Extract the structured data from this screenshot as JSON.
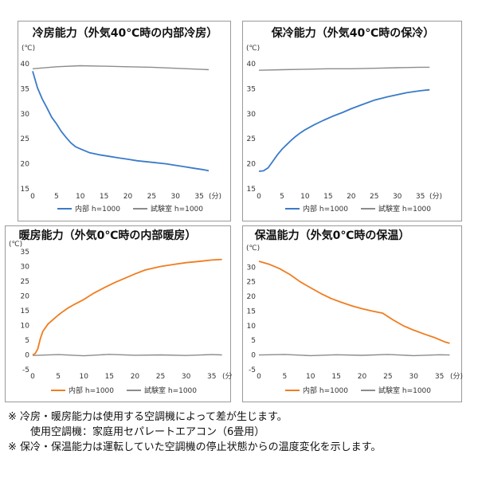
{
  "unit_label": "(℃)",
  "minute_label": "(分)",
  "colors": {
    "blue": "#3a7bc8",
    "orange": "#f07c1e",
    "gray": "#8c8c8c"
  },
  "chart_data": [
    {
      "type": "line",
      "title": "冷房能力（外気40℃時の内部冷房）",
      "x_ticks": [
        0,
        5,
        10,
        15,
        20,
        25,
        30,
        35
      ],
      "y_ticks": [
        40,
        35,
        30,
        25,
        20,
        15
      ],
      "xlim": [
        0,
        38
      ],
      "ylim": [
        15,
        40
      ],
      "series": [
        {
          "name": "内部 h=1000",
          "color": "#3a7bc8",
          "x": [
            0,
            1,
            2,
            3,
            4,
            5,
            6,
            7,
            8,
            9,
            10,
            12,
            14,
            16,
            18,
            20,
            22,
            25,
            28,
            30,
            32,
            34,
            36,
            37
          ],
          "y": [
            38.5,
            35.2,
            33.0,
            31.2,
            29.3,
            28.0,
            26.5,
            25.3,
            24.2,
            23.4,
            23.0,
            22.2,
            21.8,
            21.5,
            21.2,
            20.9,
            20.6,
            20.3,
            20.0,
            19.7,
            19.4,
            19.1,
            18.8,
            18.6
          ]
        },
        {
          "name": "試験室 h=1000",
          "color": "#8c8c8c",
          "x": [
            0,
            5,
            10,
            15,
            20,
            25,
            30,
            35,
            37
          ],
          "y": [
            39.0,
            39.4,
            39.6,
            39.5,
            39.4,
            39.3,
            39.1,
            38.9,
            38.8
          ]
        }
      ]
    },
    {
      "type": "line",
      "title": "保冷能力（外気40℃時の保冷）",
      "x_ticks": [
        0,
        5,
        10,
        15,
        20,
        25,
        30,
        35
      ],
      "y_ticks": [
        40,
        35,
        30,
        25,
        20,
        15
      ],
      "xlim": [
        0,
        38
      ],
      "ylim": [
        15,
        40
      ],
      "series": [
        {
          "name": "内部 h=1000",
          "color": "#3a7bc8",
          "x": [
            0,
            1,
            2,
            3,
            4,
            5,
            6,
            7,
            8,
            9,
            10,
            12,
            14,
            16,
            18,
            20,
            22,
            25,
            28,
            30,
            32,
            35,
            37
          ],
          "y": [
            18.5,
            18.6,
            19.2,
            20.5,
            21.8,
            22.9,
            23.8,
            24.7,
            25.5,
            26.2,
            26.8,
            27.8,
            28.7,
            29.5,
            30.2,
            31.0,
            31.7,
            32.7,
            33.4,
            33.8,
            34.2,
            34.6,
            34.8
          ]
        },
        {
          "name": "試験室 h=1000",
          "color": "#8c8c8c",
          "x": [
            0,
            5,
            10,
            15,
            20,
            25,
            30,
            35,
            37
          ],
          "y": [
            38.7,
            38.8,
            38.9,
            39.0,
            39.0,
            39.1,
            39.2,
            39.3,
            39.3
          ]
        }
      ]
    },
    {
      "type": "line",
      "title": "暖房能力（外気0℃時の内部暖房）",
      "x_ticks": [
        0,
        5,
        10,
        15,
        20,
        25,
        30,
        35
      ],
      "y_ticks": [
        35,
        30,
        25,
        20,
        15,
        10,
        5,
        0,
        -5
      ],
      "xlim": [
        0,
        38
      ],
      "ylim": [
        -5,
        35
      ],
      "series": [
        {
          "name": "内部 h=1000",
          "color": "#f07c1e",
          "x": [
            0,
            0.5,
            1,
            1.5,
            2,
            3,
            4,
            5,
            6,
            7,
            8,
            9,
            10,
            12,
            14,
            16,
            18,
            20,
            22,
            25,
            28,
            30,
            33,
            35,
            37
          ],
          "y": [
            0,
            0.5,
            2.0,
            5.5,
            8.0,
            10.5,
            12.0,
            13.5,
            14.8,
            16.0,
            17.0,
            17.9,
            18.8,
            21.0,
            22.8,
            24.5,
            26.0,
            27.5,
            28.8,
            30.0,
            30.8,
            31.3,
            31.8,
            32.2,
            32.4
          ]
        },
        {
          "name": "試験室 h=1000",
          "color": "#8c8c8c",
          "x": [
            0,
            5,
            10,
            15,
            20,
            25,
            30,
            35,
            37
          ],
          "y": [
            -0.2,
            0.1,
            -0.3,
            0.2,
            -0.1,
            0.0,
            -0.2,
            0.1,
            0.0
          ]
        }
      ]
    },
    {
      "type": "line",
      "title": "保温能力（外気0℃時の保温）",
      "x_ticks": [
        0,
        5,
        10,
        15,
        20,
        25,
        30,
        35
      ],
      "y_ticks": [
        30,
        25,
        20,
        15,
        10,
        5,
        0,
        -5
      ],
      "xlim": [
        0,
        38
      ],
      "ylim": [
        -5,
        32
      ],
      "series": [
        {
          "name": "内部 h=1000",
          "color": "#f07c1e",
          "x": [
            0,
            2,
            4,
            6,
            8,
            10,
            12,
            14,
            16,
            18,
            20,
            22,
            24,
            26,
            28,
            30,
            32,
            34,
            36,
            37
          ],
          "y": [
            32.0,
            31.0,
            29.5,
            27.5,
            25.0,
            23.0,
            21.0,
            19.3,
            18.0,
            16.8,
            15.8,
            15.0,
            14.3,
            12.0,
            10.0,
            8.5,
            7.2,
            6.0,
            4.5,
            4.0
          ]
        },
        {
          "name": "試験室 h=1000",
          "color": "#8c8c8c",
          "x": [
            0,
            5,
            10,
            15,
            20,
            25,
            30,
            35,
            37
          ],
          "y": [
            0.0,
            0.2,
            -0.2,
            0.1,
            -0.1,
            0.2,
            -0.2,
            0.1,
            0.0
          ]
        }
      ]
    }
  ],
  "notes": [
    "※ 冷房・暖房能力は使用する空調機によって差が生じます。",
    "使用空調機：家庭用セパレートエアコン（6畳用）",
    "※ 保冷・保温能力は運転していた空調機の停止状態からの温度変化を示します。"
  ]
}
